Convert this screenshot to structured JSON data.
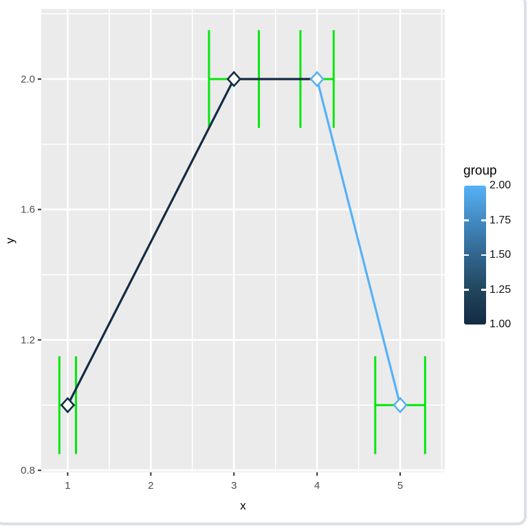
{
  "chart_data": {
    "type": "line",
    "title": "",
    "xlabel": "x",
    "ylabel": "y",
    "xlim": [
      0.682,
      5.537
    ],
    "ylim": [
      0.794,
      2.215
    ],
    "x_ticks": [
      1,
      2,
      3,
      4,
      5
    ],
    "x_tick_labels": [
      "1",
      "2",
      "3",
      "4",
      "5"
    ],
    "x_minor_ticks": [
      1.5,
      2.5,
      3.5,
      4.5,
      5.5
    ],
    "y_ticks": [
      0.8,
      1.2,
      1.6,
      2.0
    ],
    "y_tick_labels": [
      "0.8",
      "1.2",
      "1.6",
      "2.0"
    ],
    "y_minor_ticks": [
      1.0,
      1.4,
      1.8,
      2.2
    ],
    "grid": true,
    "panel_bg": "#EBEBEB",
    "grid_color": "#FFFFFF",
    "axis_text_color": "#4D4D4D",
    "tick_mark_color": "#333333",
    "series": [
      {
        "name": "group 1",
        "group": 1,
        "color": "#132B43",
        "points": [
          {
            "x": 1,
            "y": 1
          },
          {
            "x": 3,
            "y": 2
          },
          {
            "x": 4,
            "y": 2
          }
        ]
      },
      {
        "name": "group 2",
        "group": 2,
        "color": "#56B1F7",
        "points": [
          {
            "x": 4,
            "y": 2
          },
          {
            "x": 5,
            "y": 1
          }
        ]
      }
    ],
    "markers": [
      {
        "x": 1,
        "y": 1,
        "color": "#132B43"
      },
      {
        "x": 3,
        "y": 2,
        "color": "#132B43"
      },
      {
        "x": 4,
        "y": 2,
        "color": "#56B1F7"
      },
      {
        "x": 5,
        "y": 1,
        "color": "#56B1F7"
      }
    ],
    "marker_shape": "open-diamond",
    "error_bars": {
      "color": "#00E80B",
      "cap_half_height": 0.15,
      "bars": [
        {
          "x": 1,
          "y": 1,
          "xmin": 0.9,
          "xmax": 1.1
        },
        {
          "x": 3,
          "y": 2,
          "xmin": 2.7,
          "xmax": 3.3
        },
        {
          "x": 4,
          "y": 2,
          "xmin": 3.8,
          "xmax": 4.2
        },
        {
          "x": 5,
          "y": 1,
          "xmin": 4.7,
          "xmax": 5.3
        }
      ]
    },
    "legend": {
      "title": "group",
      "type": "colorbar",
      "position": "right",
      "range": [
        1.0,
        2.0
      ],
      "gradient_stops": [
        "#56B1F7",
        "#438AC3",
        "#31668E",
        "#21465D",
        "#132B43"
      ],
      "tick_values": [
        2.0,
        1.75,
        1.5,
        1.25,
        1.0
      ],
      "tick_labels": [
        "2.00",
        "1.75",
        "1.50",
        "1.25",
        "1.00"
      ]
    }
  }
}
